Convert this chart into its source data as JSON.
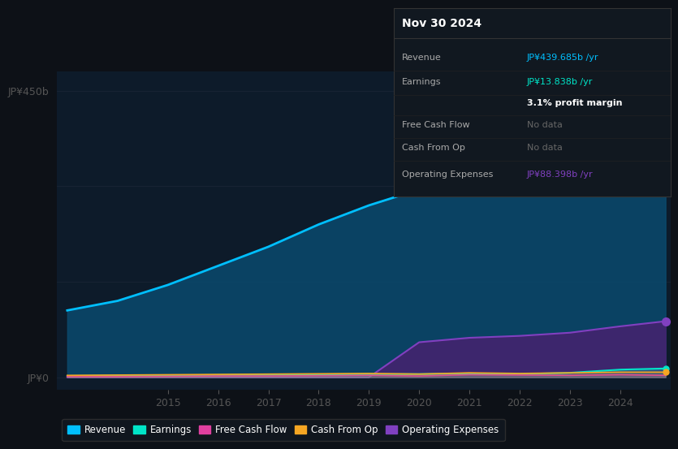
{
  "background_color": "#0d1117",
  "chart_bg_color": "#0d1b2a",
  "years": [
    2013,
    2014,
    2015,
    2016,
    2017,
    2018,
    2019,
    2020,
    2021,
    2022,
    2023,
    2024,
    2024.9
  ],
  "revenue": [
    105,
    120,
    145,
    175,
    205,
    240,
    270,
    295,
    320,
    310,
    340,
    400,
    440
  ],
  "earnings": [
    2,
    2.5,
    3,
    3.5,
    4,
    4.5,
    5,
    5,
    6,
    5,
    7,
    12,
    13.8
  ],
  "free_cash_flow": [
    1,
    1,
    1.5,
    2,
    2,
    2.5,
    3,
    2,
    4,
    3.5,
    3,
    4,
    3
  ],
  "cash_from_op": [
    3,
    3.5,
    4,
    4.5,
    5,
    5.5,
    6,
    5,
    7,
    6,
    7,
    8,
    8
  ],
  "operating_expenses": [
    0,
    0,
    0,
    0,
    0,
    0,
    0,
    55,
    62,
    65,
    70,
    80,
    88
  ],
  "revenue_color": "#00bfff",
  "earnings_color": "#00e5c8",
  "fcf_color": "#e040a0",
  "cfop_color": "#f5a623",
  "opex_color": "#8040c0",
  "revenue_fill": "#0a4a6e",
  "opex_fill": "#4a2070",
  "ylim_top": 450,
  "ylim_bottom": -20,
  "ylabel_top": "JP¥450b",
  "ylabel_bottom": "JP¥0",
  "x_ticks": [
    2015,
    2016,
    2017,
    2018,
    2019,
    2020,
    2021,
    2022,
    2023,
    2024
  ],
  "panel_title": "Nov 30 2024",
  "panel_bg": "#111820",
  "panel_border": "#333333",
  "legend_labels": [
    "Revenue",
    "Earnings",
    "Free Cash Flow",
    "Cash From Op",
    "Operating Expenses"
  ],
  "legend_colors": [
    "#00bfff",
    "#00e5c8",
    "#e040a0",
    "#f5a623",
    "#8040c0"
  ],
  "panel_rows": [
    {
      "label": "Revenue",
      "value": "JP¥439.685b /yr",
      "val_color": "#00bfff",
      "bold": false
    },
    {
      "label": "Earnings",
      "value": "JP¥13.838b /yr",
      "val_color": "#00e5c8",
      "bold": false
    },
    {
      "label": "",
      "value": "3.1% profit margin",
      "val_color": "#ffffff",
      "bold": true
    },
    {
      "label": "Free Cash Flow",
      "value": "No data",
      "val_color": "#666666",
      "bold": false
    },
    {
      "label": "Cash From Op",
      "value": "No data",
      "val_color": "#666666",
      "bold": false
    },
    {
      "label": "Operating Expenses",
      "value": "JP¥88.398b /yr",
      "val_color": "#8040c0",
      "bold": false
    }
  ]
}
